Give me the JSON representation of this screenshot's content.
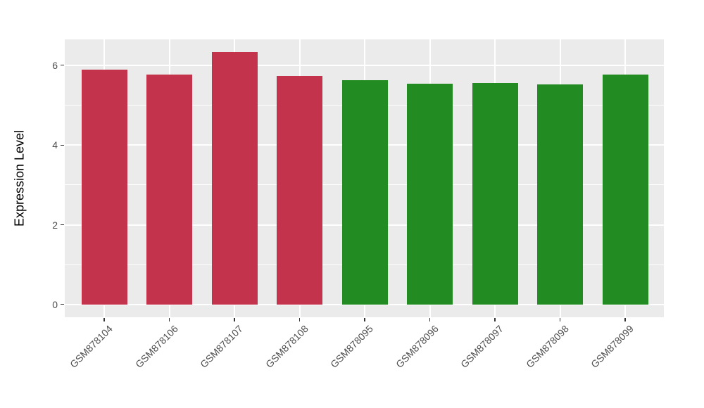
{
  "chart_data": {
    "type": "bar",
    "title": "",
    "xlabel": "",
    "ylabel": "Expression Level",
    "categories": [
      "GSM878104",
      "GSM878106",
      "GSM878107",
      "GSM878108",
      "GSM878095",
      "GSM878096",
      "GSM878097",
      "GSM878098",
      "GSM878099"
    ],
    "values": [
      5.9,
      5.76,
      6.33,
      5.74,
      5.62,
      5.54,
      5.55,
      5.52,
      5.76
    ],
    "bar_colors": [
      "#C3344C",
      "#C3344C",
      "#C3344C",
      "#C3344C",
      "#228B22",
      "#228B22",
      "#228B22",
      "#228B22",
      "#228B22"
    ],
    "group_colors": {
      "left_group": "#C3344C",
      "right_group": "#228B22"
    },
    "ylim": [
      -0.32,
      6.65
    ],
    "yticks_major": [
      0,
      2,
      4,
      6
    ],
    "yticks_minor": [
      1,
      3,
      5
    ],
    "ytick_labels": [
      "0",
      "2",
      "4",
      "6"
    ],
    "x_tick_rotation_deg": 45,
    "legend": "none",
    "grid": "on",
    "panel_background": "#EBEBEB",
    "gridline_color": "#FFFFFF",
    "tick_label_color": "#4D4D4D",
    "tick_mark_color": "#333333",
    "axis_title_color": "#000000"
  }
}
